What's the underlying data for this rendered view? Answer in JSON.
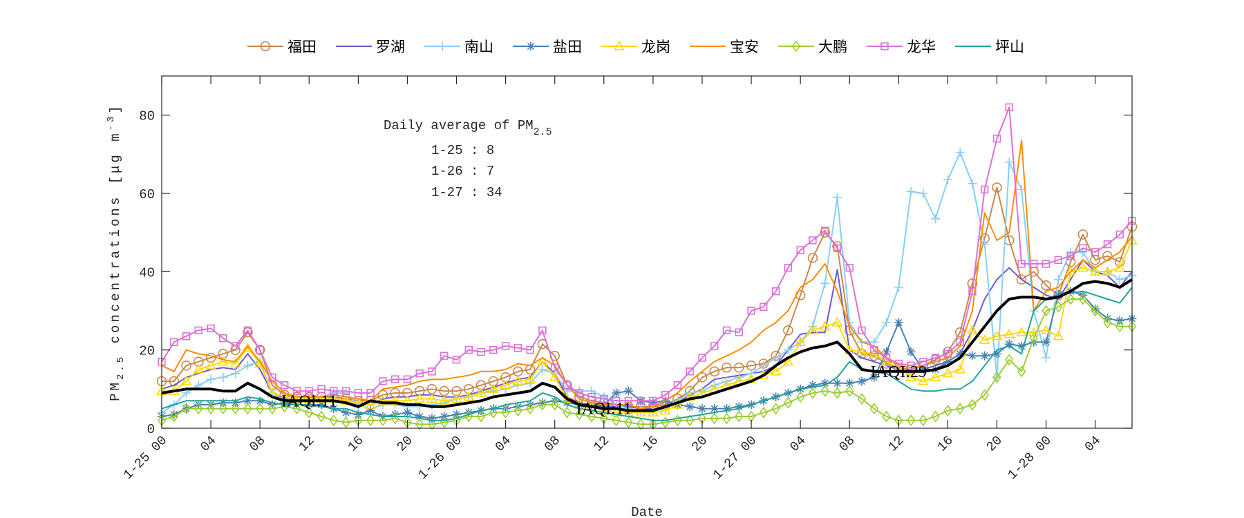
{
  "chart_data": {
    "type": "line",
    "xlabel": "Date",
    "ylabel": "PM2.5 concentrations [μg m-3]",
    "ylim": [
      0,
      90
    ],
    "y_ticks": [
      0,
      20,
      40,
      60,
      80
    ],
    "grid": false,
    "legend_placement": "top (outside, horizontal)",
    "x": [
      "1-25 00",
      "1-25 01",
      "1-25 02",
      "1-25 03",
      "1-25 04",
      "1-25 05",
      "1-25 06",
      "1-25 07",
      "1-25 08",
      "1-25 09",
      "1-25 10",
      "1-25 11",
      "1-25 12",
      "1-25 13",
      "1-25 14",
      "1-25 15",
      "1-25 16",
      "1-25 17",
      "1-25 18",
      "1-25 19",
      "1-25 20",
      "1-25 21",
      "1-25 22",
      "1-25 23",
      "1-26 00",
      "1-26 01",
      "1-26 02",
      "1-26 03",
      "1-26 04",
      "1-26 05",
      "1-26 06",
      "1-26 07",
      "1-26 08",
      "1-26 09",
      "1-26 10",
      "1-26 11",
      "1-26 12",
      "1-26 13",
      "1-26 14",
      "1-26 15",
      "1-26 16",
      "1-26 17",
      "1-26 18",
      "1-26 19",
      "1-26 20",
      "1-26 21",
      "1-26 22",
      "1-26 23",
      "1-27 00",
      "1-27 01",
      "1-27 02",
      "1-27 03",
      "1-27 04",
      "1-27 05",
      "1-27 06",
      "1-27 07",
      "1-27 08",
      "1-27 09",
      "1-27 10",
      "1-27 11",
      "1-27 12",
      "1-27 13",
      "1-27 14",
      "1-27 15",
      "1-27 16",
      "1-27 17",
      "1-27 18",
      "1-27 19",
      "1-27 20",
      "1-27 21",
      "1-27 22",
      "1-27 23",
      "1-28 00",
      "1-28 01",
      "1-28 02",
      "1-28 03",
      "1-28 04",
      "1-28 05",
      "1-28 06",
      "1-28 07"
    ],
    "x_tick_labels": [
      "1-25 00",
      "04",
      "08",
      "12",
      "16",
      "20",
      "1-26 00",
      "04",
      "08",
      "12",
      "16",
      "20",
      "1-27 00",
      "04",
      "08",
      "12",
      "16",
      "20",
      "1-28 00",
      "04"
    ],
    "series": [
      {
        "name": "福田",
        "color": "#c8864a",
        "marker": "circle",
        "values": [
          12,
          12,
          16,
          17,
          18,
          19,
          20,
          24.5,
          20,
          11,
          8.5,
          8,
          8,
          8,
          8,
          7.5,
          7,
          7,
          8.5,
          9,
          9,
          9.5,
          10,
          9.5,
          9.5,
          10,
          11,
          12,
          13,
          14.5,
          15,
          21.5,
          18.5,
          11,
          8,
          7,
          6.5,
          6,
          5.5,
          5.5,
          5.5,
          6,
          7.5,
          9.5,
          13,
          14.5,
          15.5,
          15.5,
          16,
          16.5,
          18.5,
          25,
          34,
          43.5,
          50,
          46.5,
          25,
          19,
          18.5,
          16.5,
          15.5,
          15,
          16,
          17.5,
          19.5,
          24.5,
          37,
          48.5,
          61.5,
          48,
          38,
          40,
          36.5,
          34,
          42.5,
          49.5,
          43,
          44,
          42.5,
          51.5
        ]
      },
      {
        "name": "罗湖",
        "color": "#6a5acd",
        "marker": "none",
        "values": [
          10,
          11,
          13,
          14,
          15,
          15.5,
          15,
          19,
          15,
          9,
          7.5,
          7,
          7,
          7,
          7,
          7,
          6.5,
          6,
          7.5,
          8,
          8,
          8.5,
          8.5,
          8,
          8,
          8.5,
          9.5,
          10.5,
          11.5,
          12.5,
          13,
          17,
          14,
          8,
          6.5,
          6,
          5.5,
          5.5,
          5.5,
          5,
          5,
          5.5,
          6.5,
          8.5,
          10,
          12.5,
          13,
          13.5,
          14,
          14.5,
          16,
          20,
          24,
          24.5,
          24.5,
          40.5,
          20,
          18,
          17,
          16,
          15,
          14.5,
          15,
          16,
          17,
          19,
          25,
          33,
          38,
          41,
          38,
          36,
          34,
          33,
          38,
          43,
          40,
          39,
          36,
          40
        ]
      },
      {
        "name": "南山",
        "color": "#87cefa",
        "marker": "plus",
        "values": [
          4,
          6,
          9,
          11,
          12.5,
          13,
          14,
          16,
          17,
          9,
          7,
          7,
          7.5,
          8,
          9,
          9,
          6,
          5,
          6,
          6,
          5.5,
          5.5,
          6,
          6.5,
          7.5,
          8,
          9,
          9.5,
          10,
          11,
          11.5,
          15,
          14,
          9.5,
          9.5,
          9.5,
          8,
          6,
          5,
          4.5,
          4.5,
          5,
          7,
          9,
          9.5,
          11,
          12,
          13,
          14,
          16,
          18,
          20,
          22,
          26,
          37,
          59,
          27,
          22,
          22,
          27,
          36,
          60.5,
          60,
          53.5,
          63.5,
          70.5,
          62.5,
          47,
          13,
          68,
          61,
          30,
          18,
          38,
          45,
          45,
          40,
          40,
          38,
          39
        ]
      },
      {
        "name": "盐田",
        "color": "#4682b4",
        "marker": "asterisk",
        "values": [
          3,
          3.5,
          5,
          6,
          6,
          6.5,
          6.5,
          7,
          7,
          6,
          6.5,
          6,
          6,
          6,
          5,
          4,
          3.5,
          4.5,
          3,
          3.5,
          4,
          3,
          2.5,
          3,
          3.5,
          4,
          4.5,
          5,
          5,
          5.5,
          6,
          6.5,
          7,
          6.5,
          6,
          6,
          6,
          9,
          9.5,
          7,
          6.5,
          7,
          6,
          5.5,
          5,
          5,
          5,
          5.5,
          6,
          7,
          8,
          9,
          10,
          11,
          11.5,
          11.5,
          11.5,
          12,
          13,
          19.5,
          27,
          19.5,
          15,
          15,
          17,
          19,
          18.5,
          18.5,
          19,
          21.5,
          21,
          22,
          22,
          34,
          35,
          34,
          30.5,
          28,
          27.5,
          28
        ]
      },
      {
        "name": "龙岗",
        "color": "#ffd700",
        "marker": "triangle",
        "values": [
          9.5,
          9.5,
          12,
          15,
          16,
          17,
          16.5,
          20.5,
          16.5,
          9,
          8,
          7.5,
          7.5,
          7.5,
          7.5,
          7,
          6.5,
          6,
          7,
          7,
          7,
          7.5,
          7.5,
          7,
          7.5,
          8,
          9,
          10,
          11,
          12,
          12.5,
          17,
          13,
          7.5,
          6,
          5.5,
          4.5,
          4,
          4,
          4,
          4,
          4.5,
          6,
          8,
          9,
          10,
          11,
          12,
          12.5,
          13.5,
          14.5,
          17,
          22,
          25,
          26,
          27,
          20,
          19.5,
          19,
          17,
          15.5,
          13,
          12,
          13,
          14,
          15,
          25,
          22.5,
          23.5,
          24,
          24.5,
          24.5,
          25,
          23.5,
          40,
          41,
          40,
          40,
          41,
          48
        ]
      },
      {
        "name": "宝安",
        "color": "#ff8c00",
        "marker": "none",
        "values": [
          16,
          14.5,
          20,
          19,
          18.5,
          17.5,
          17,
          21,
          17,
          12,
          9,
          8,
          8,
          8,
          8.5,
          8,
          7.5,
          7,
          10,
          10.5,
          11,
          12,
          12.5,
          12.5,
          13,
          13.5,
          14.5,
          14.5,
          15,
          16.5,
          16,
          18,
          16,
          11,
          7.5,
          6.5,
          6,
          6,
          6,
          5,
          5.5,
          7,
          9,
          12,
          14.5,
          17,
          18.5,
          20,
          22,
          25,
          27,
          30,
          36,
          38,
          42,
          35,
          26,
          22,
          21,
          18,
          16,
          15.5,
          16,
          17,
          18,
          21,
          30,
          55,
          48,
          50,
          73.5,
          30,
          35,
          36,
          40,
          43,
          41,
          43,
          45,
          49
        ]
      },
      {
        "name": "大鹏",
        "color": "#9acd32",
        "marker": "diamond",
        "values": [
          2,
          3,
          5,
          5,
          5,
          5,
          5,
          5,
          5,
          5,
          5.5,
          5,
          4,
          3,
          2,
          1.5,
          2,
          2,
          2,
          2.5,
          1.5,
          1,
          1,
          1.5,
          2,
          3,
          3,
          4,
          4,
          4.5,
          5,
          6,
          6,
          4,
          3.5,
          3,
          2.5,
          2,
          1.5,
          1,
          1,
          1.5,
          2,
          2,
          2.5,
          2.5,
          2.5,
          3,
          3,
          4,
          5,
          6.5,
          8,
          9,
          9.5,
          9,
          9.5,
          7.5,
          5,
          3,
          2,
          2,
          2,
          3,
          4.5,
          5,
          6,
          8.5,
          13,
          17.5,
          14.5,
          23,
          30,
          31,
          33,
          33,
          30,
          27,
          26,
          26
        ]
      },
      {
        "name": "龙华",
        "color": "#da70d6",
        "marker": "square",
        "values": [
          17,
          22,
          23.5,
          25,
          25.5,
          23,
          21,
          25,
          20,
          13,
          11,
          9.5,
          9.5,
          10,
          9.5,
          9.5,
          9,
          9,
          12,
          12.5,
          12.5,
          14,
          14.5,
          18.5,
          17.5,
          20,
          19.5,
          20,
          21,
          20.5,
          20,
          25,
          15.5,
          11,
          9,
          8,
          7.5,
          7,
          7,
          7,
          7,
          8.5,
          11,
          14.5,
          18,
          21,
          25,
          24.5,
          30,
          31,
          35,
          41,
          45.5,
          48,
          50.5,
          46,
          41,
          25,
          20,
          18,
          16.5,
          16,
          17,
          18,
          19,
          22,
          35,
          61,
          74,
          82,
          42,
          42,
          42,
          43,
          44,
          46,
          45,
          47,
          49.5,
          53
        ]
      },
      {
        "name": "坪山",
        "color": "#20a39a",
        "marker": "none",
        "values": [
          5,
          6,
          7,
          7,
          7,
          7,
          7,
          8,
          7.5,
          6.5,
          6,
          6,
          6,
          5.5,
          5,
          5,
          4,
          3.5,
          3,
          3,
          3,
          2.5,
          2,
          2,
          2.5,
          3.5,
          4.5,
          5,
          6,
          6.5,
          7,
          9,
          8,
          6,
          5,
          4.5,
          4,
          3.5,
          3,
          2.5,
          2,
          2,
          2.5,
          3,
          3.5,
          4,
          4.5,
          5,
          6,
          7,
          8,
          9,
          10,
          10.5,
          11,
          13,
          17,
          15,
          14.5,
          14,
          12,
          10,
          9.5,
          9.5,
          10,
          10,
          12,
          16,
          20,
          21,
          19,
          30,
          33,
          34,
          34.5,
          35,
          34,
          33,
          32,
          36
        ]
      },
      {
        "color": "#000000",
        "marker": "none",
        "bold": true,
        "values": [
          9,
          9.5,
          10,
          10,
          10,
          9.5,
          9.5,
          11.5,
          10,
          8,
          7,
          7,
          7,
          7,
          7,
          6.5,
          5.5,
          7,
          6.5,
          6.5,
          6,
          6,
          5.5,
          5.5,
          6,
          6.5,
          7,
          8,
          8.5,
          9,
          9.5,
          11.5,
          10.5,
          7.5,
          6,
          5.5,
          5,
          5,
          4.5,
          4.5,
          4.5,
          5.5,
          6.5,
          7.5,
          8,
          9,
          10,
          11,
          12,
          13.5,
          16,
          18,
          19.5,
          20.5,
          21,
          22,
          19,
          15,
          14.5,
          14.5,
          14.5,
          14.5,
          14.5,
          15,
          16,
          18,
          22,
          26,
          30,
          33,
          33.5,
          33.5,
          33,
          33.5,
          35,
          37,
          37.5,
          37,
          36,
          38
        ]
      }
    ],
    "annotations": {
      "box_title": "Daily average of PM",
      "box_title_sub": "2.5",
      "daily": [
        "1-25 : 8",
        "1-26 : 7",
        "1-27 : 34"
      ],
      "iaqi": [
        {
          "text": "IAQI:11",
          "x": "1-25 12",
          "y": 7
        },
        {
          "text": "IAQI:11",
          "x": "1-26 12",
          "y": 5
        },
        {
          "text": "IAQI:29",
          "x": "1-27 12",
          "y": 14.5
        }
      ]
    }
  }
}
